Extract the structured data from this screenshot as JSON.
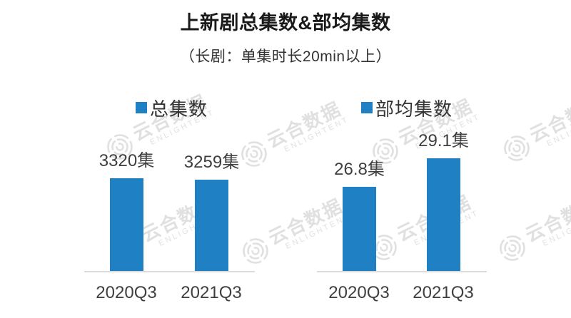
{
  "header": {
    "title": "上新剧总集数&部均集数",
    "subtitle": "（长剧：单集时长20min以上）"
  },
  "watermark": {
    "text": "云合数据",
    "subtext": "ENLIGHTENT"
  },
  "colors": {
    "bar": "#1f80c4",
    "axis_line": "#dbdbdb",
    "title_text": "#1a1a1a",
    "label_text": "#3f3f3f",
    "watermark": "#d9d9d9"
  },
  "chart_data": [
    {
      "type": "bar",
      "name": "总集数",
      "legend": "总集数",
      "categories": [
        "2020Q3",
        "2021Q3"
      ],
      "values": [
        3320,
        3259
      ],
      "value_labels": [
        "3320集",
        "3259集"
      ],
      "unit": "集",
      "ylim": [
        0,
        3320
      ],
      "grid": false,
      "legend_position": "top",
      "axis_ticks_visible": false
    },
    {
      "type": "bar",
      "name": "部均集数",
      "legend": "部均集数",
      "categories": [
        "2020Q3",
        "2021Q3"
      ],
      "values": [
        26.8,
        29.1
      ],
      "value_labels": [
        "26.8集",
        "29.1集"
      ],
      "unit": "集",
      "ylim": [
        20,
        29.1
      ],
      "grid": false,
      "legend_position": "top",
      "axis_ticks_visible": false
    }
  ]
}
